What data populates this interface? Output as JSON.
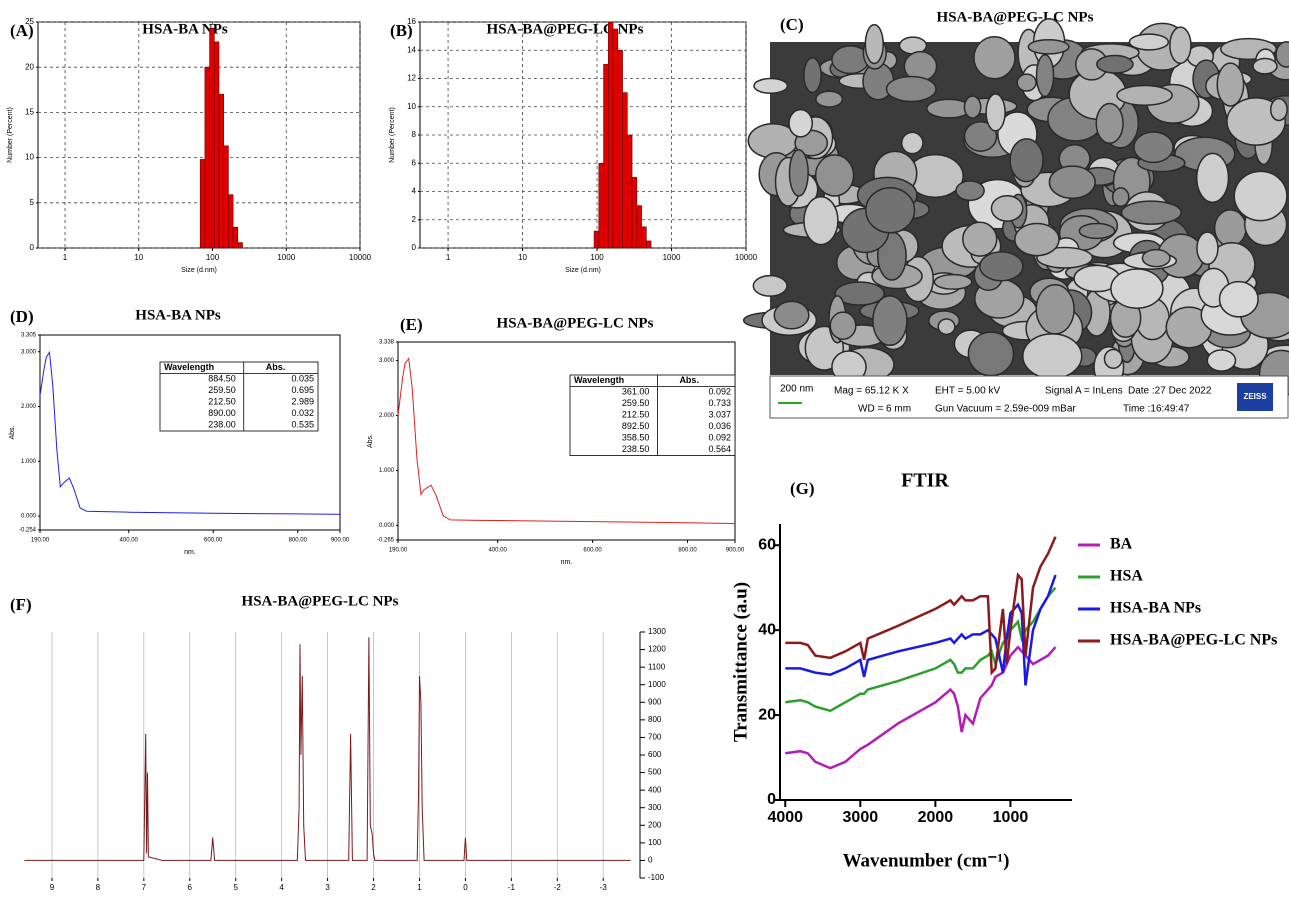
{
  "chart_data": [
    {
      "type": "histogram",
      "label": "(A)",
      "title": "HSA-BA NPs",
      "x_label": "Size (d.nm)",
      "y_label": "Number (Percent)",
      "log_x": true,
      "grid": true,
      "color": "#e00000",
      "bins": [
        68.06,
        78.82,
        91.28,
        105.7,
        122.4,
        141.8,
        164.2,
        190.1,
        220.2,
        255.0
      ],
      "values": [
        9.8,
        20.0,
        24.3,
        22.8,
        17.0,
        11.3,
        5.9,
        2.3,
        0.6
      ],
      "xlim": [
        0.43,
        10000
      ],
      "xticks": [
        1,
        10,
        100,
        1000,
        10000
      ],
      "ylim": [
        0,
        25
      ],
      "yticks": [
        0,
        5,
        10,
        15,
        20,
        25
      ]
    },
    {
      "type": "histogram",
      "label": "(B)",
      "title": "HSA-BA@PEG-LC NPs",
      "x_label": "Size (d.nm)",
      "y_label": "Number (Percent)",
      "log_x": true,
      "grid": true,
      "color": "#e00000",
      "bins": [
        91.28,
        105.7,
        122.4,
        141.8,
        164.2,
        190.1,
        220.2,
        255.0,
        295.3,
        342.0,
        396.1,
        458.7,
        531.2
      ],
      "values": [
        1.2,
        6,
        13,
        16,
        15.5,
        14,
        11,
        8,
        5,
        3,
        1.5,
        0.5
      ],
      "xlim": [
        0.42,
        10000
      ],
      "xticks": [
        1,
        10,
        100,
        1000,
        10000
      ],
      "ylim": [
        0,
        16
      ],
      "yticks": [
        0,
        2,
        4,
        6,
        8,
        10,
        12,
        14,
        16
      ]
    },
    {
      "type": "image",
      "label": "(C)",
      "title": "HSA-BA@PEG-LC NPs",
      "scale_bar": "200 nm",
      "info": [
        "Mag =  65.12 K X",
        "EHT = 5.00 kV",
        "Signal A = InLens",
        "Date :27 Dec 2022",
        "WD =   6 mm",
        "Gun Vacuum = 2.59e-009 mBar",
        "Time :16:49:47"
      ],
      "logo": "ZEISS"
    },
    {
      "type": "line",
      "label": "(D)",
      "title": "HSA-BA NPs",
      "x_label": "nm.",
      "y_label": "Abs.",
      "color": "#2020e0",
      "x": [
        190,
        200,
        205,
        212.5,
        220,
        230,
        238,
        245,
        259.5,
        270,
        285,
        300,
        400,
        600,
        800,
        884.5,
        890,
        900
      ],
      "values": [
        2.2,
        2.7,
        2.9,
        2.989,
        2.4,
        1.2,
        0.535,
        0.6,
        0.695,
        0.5,
        0.15,
        0.09,
        0.07,
        0.05,
        0.04,
        0.035,
        0.032,
        0.03
      ],
      "xlim": [
        190,
        900
      ],
      "xticks": [
        {
          "value": 190,
          "label": "190.00"
        },
        {
          "value": 400,
          "label": "400.00"
        },
        {
          "value": 600,
          "label": "600.00"
        },
        {
          "value": 800,
          "label": "800.00"
        },
        {
          "value": 900,
          "label": "900.00"
        }
      ],
      "ylim": [
        -0.254,
        3.305
      ],
      "yticks": [
        {
          "value": -0.254,
          "label": "-0.254"
        },
        {
          "value": 0,
          "label": "0.000"
        },
        {
          "value": 1,
          "label": "1.000"
        },
        {
          "value": 2,
          "label": "2.000"
        },
        {
          "value": 3,
          "label": "3.000"
        },
        {
          "value": 3.305,
          "label": "3.305"
        }
      ],
      "table": {
        "columns": [
          "Wavelength",
          "Abs."
        ],
        "rows": [
          [
            "884.50",
            "0.035"
          ],
          [
            "259.50",
            "0.695"
          ],
          [
            "212.50",
            "2.989"
          ],
          [
            "890.00",
            "0.032"
          ],
          [
            "238.00",
            "0.535"
          ]
        ]
      }
    },
    {
      "type": "line",
      "label": "(E)",
      "title": "HSA-BA@PEG-LC NPs",
      "x_label": "nm.",
      "y_label": "Abs.",
      "color": "#e02020",
      "x": [
        190,
        200,
        205,
        212.5,
        220,
        230,
        238.5,
        245,
        259.5,
        270,
        285,
        300,
        358.5,
        361,
        400,
        600,
        800,
        892.5,
        900
      ],
      "values": [
        2.0,
        2.7,
        2.95,
        3.037,
        2.5,
        1.2,
        0.564,
        0.65,
        0.733,
        0.55,
        0.18,
        0.1,
        0.092,
        0.092,
        0.09,
        0.07,
        0.05,
        0.036,
        0.03
      ],
      "xlim": [
        190,
        900
      ],
      "xticks": [
        {
          "value": 190,
          "label": "190.00"
        },
        {
          "value": 400,
          "label": "400.00"
        },
        {
          "value": 600,
          "label": "600.00"
        },
        {
          "value": 800,
          "label": "800.00"
        },
        {
          "value": 900,
          "label": "900.00"
        }
      ],
      "ylim": [
        -0.265,
        3.338
      ],
      "yticks": [
        {
          "value": -0.265,
          "label": "-0.265"
        },
        {
          "value": 0,
          "label": "0.000"
        },
        {
          "value": 1,
          "label": "1.000"
        },
        {
          "value": 2,
          "label": "2.000"
        },
        {
          "value": 3,
          "label": "3.000"
        },
        {
          "value": 3.338,
          "label": "3.338"
        }
      ],
      "table": {
        "columns": [
          "Wavelength",
          "Abs."
        ],
        "rows": [
          [
            "361.00",
            "0.092"
          ],
          [
            "259.50",
            "0.733"
          ],
          [
            "212.50",
            "3.037"
          ],
          [
            "892.50",
            "0.036"
          ],
          [
            "358.50",
            "0.092"
          ],
          [
            "238.50",
            "0.564"
          ]
        ]
      }
    },
    {
      "type": "line",
      "label": "(F)",
      "title": "HSA-BA@PEG-LC NPs",
      "color": "#7a1a1a",
      "grid": "x",
      "y_axis": "right",
      "x": [
        9.6,
        7.0,
        6.96,
        6.94,
        6.92,
        6.9,
        6.6,
        5.54,
        5.5,
        5.46,
        3.66,
        3.62,
        3.6,
        3.58,
        3.55,
        3.52,
        3.48,
        2.54,
        2.5,
        2.46,
        2.14,
        2.1,
        2.07,
        2.03,
        2.0,
        1.97,
        1.05,
        1.02,
        1.0,
        0.97,
        0.94,
        0.9,
        0.03,
        0.0,
        -0.03,
        -3.6
      ],
      "values": [
        0,
        0,
        720,
        40,
        500,
        20,
        0,
        0,
        130,
        0,
        0,
        300,
        1230,
        600,
        1050,
        200,
        0,
        0,
        720,
        0,
        0,
        1270,
        200,
        150,
        40,
        0,
        0,
        400,
        1050,
        900,
        300,
        0,
        0,
        130,
        0,
        0
      ],
      "xlim": [
        10,
        -3.8
      ],
      "xticks": [
        9,
        8,
        7,
        6,
        5,
        4,
        3,
        2,
        1,
        0,
        -1,
        -2,
        -3
      ],
      "ylim": [
        -100,
        1300
      ],
      "yticks": [
        -100,
        0,
        100,
        200,
        300,
        400,
        500,
        600,
        700,
        800,
        900,
        1000,
        1100,
        1200,
        1300
      ]
    },
    {
      "type": "line",
      "label": "(G)",
      "title": "FTIR",
      "x_label": "Wavenumber (cm⁻¹)",
      "y_label": "Transmittance (a.u)",
      "legend": "right",
      "x": [
        4000,
        3800,
        3700,
        3600,
        3400,
        3200,
        3000,
        2950,
        2900,
        2500,
        2000,
        1800,
        1750,
        1700,
        1650,
        1600,
        1500,
        1400,
        1300,
        1250,
        1200,
        1100,
        1050,
        1000,
        900,
        850,
        800,
        700,
        600,
        500,
        400
      ],
      "series": [
        {
          "name": "BA",
          "color": "#b31cb8",
          "values": [
            11,
            11.5,
            11,
            9,
            7.5,
            9,
            12,
            12.5,
            13,
            18,
            23,
            26,
            25,
            22,
            16,
            20,
            18,
            24,
            26,
            27,
            29,
            30,
            32,
            34,
            36,
            35,
            34,
            32,
            33,
            34,
            36
          ]
        },
        {
          "name": "HSA",
          "color": "#2ca02c",
          "values": [
            23,
            23.5,
            23,
            22,
            21,
            23,
            25,
            25,
            26,
            28,
            31,
            33,
            32,
            30,
            30,
            31,
            31,
            33,
            34,
            35,
            32,
            37,
            38,
            40,
            42,
            38,
            40,
            42,
            45,
            48,
            50
          ]
        },
        {
          "name": "HSA-BA NPs",
          "color": "#1a1ae6",
          "values": [
            31,
            31,
            30.5,
            30,
            29.5,
            31,
            33,
            29,
            33,
            35,
            37,
            38,
            37,
            38,
            39,
            38,
            39,
            39,
            40,
            39,
            38,
            30,
            38,
            44,
            46,
            44,
            27,
            40,
            45,
            48,
            53
          ]
        },
        {
          "name": "HSA-BA@PEG-LC NPs",
          "color": "#8b1a1a",
          "values": [
            37,
            37,
            36.5,
            34,
            33.5,
            35,
            37,
            33,
            38,
            41,
            45,
            47,
            46,
            47,
            48,
            47,
            47,
            48,
            48,
            30,
            31,
            45,
            32,
            40,
            53,
            52,
            34,
            50,
            55,
            58,
            62
          ]
        }
      ],
      "xlim": [
        4070,
        180
      ],
      "xticks": [
        4000,
        3000,
        2000,
        1000
      ],
      "ylim": [
        0,
        65
      ],
      "yticks": [
        0,
        20,
        40,
        60
      ]
    }
  ]
}
